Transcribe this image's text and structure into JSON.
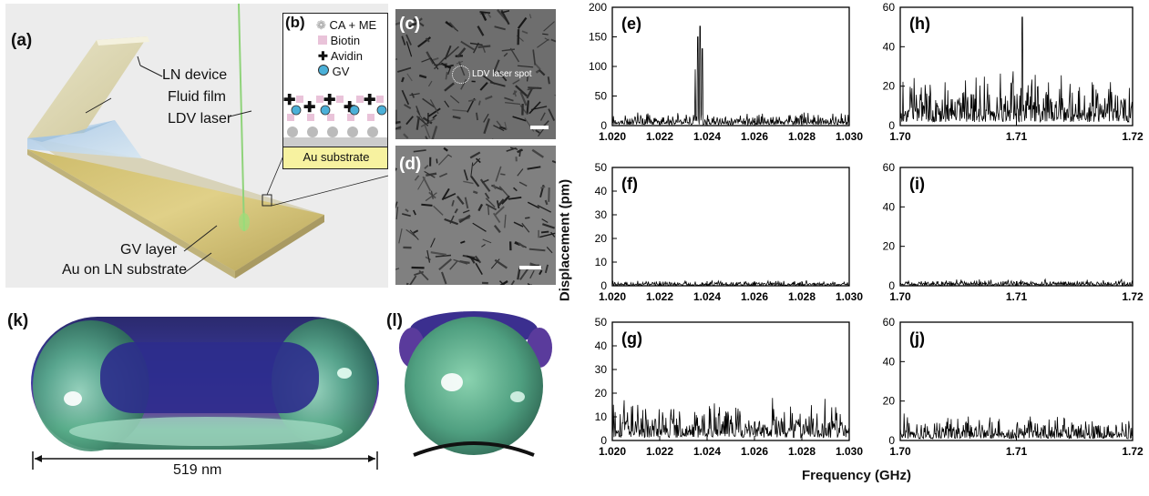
{
  "panel_a": {
    "label": "(a)",
    "callouts": [
      "LN device",
      "Fluid film",
      "LDV laser",
      "GV layer",
      "Au on LN substrate"
    ]
  },
  "panel_b": {
    "label": "(b)",
    "legend": [
      "CA + ME",
      "Biotin",
      "Avidin",
      "GV"
    ],
    "substrate": "Au substrate"
  },
  "panel_c": {
    "label": "(c)",
    "spot_label": "LDV laser spot"
  },
  "panel_d": {
    "label": "(d)"
  },
  "panel_k": {
    "label": "(k)",
    "dimension": "519 nm"
  },
  "panel_l": {
    "label": "(l)"
  },
  "shared_axes": {
    "ylabel": "Displacement (pm)",
    "xlabel": "Frequency (GHz)"
  },
  "colors": {
    "trace": "#000000",
    "gv_blue": "#4bb0d8",
    "biotin": "#e9c3d9",
    "substrate": "#f7f2a0",
    "spheroid_green": "#55a885",
    "spheroid_purple": "#3a2f8c"
  },
  "chart_data": [
    {
      "id": "e",
      "label": "(e)",
      "type": "line",
      "xlim": [
        1.02,
        1.03
      ],
      "ylim": [
        0,
        200
      ],
      "xticks": [
        "1.020",
        "1.022",
        "1.024",
        "1.026",
        "1.028",
        "1.030"
      ],
      "yticks": [
        "0",
        "50",
        "100",
        "150",
        "200"
      ],
      "noise_level": 10,
      "peaks": [
        {
          "x": 1.0237,
          "y": 168
        },
        {
          "x": 1.0236,
          "y": 150
        },
        {
          "x": 1.0238,
          "y": 130
        },
        {
          "x": 1.0235,
          "y": 95
        }
      ]
    },
    {
      "id": "h",
      "label": "(h)",
      "type": "line",
      "xlim": [
        1.7,
        1.72
      ],
      "ylim": [
        0,
        60
      ],
      "xticks": [
        "1.70",
        "1.71",
        "1.72"
      ],
      "yticks": [
        "0",
        "20",
        "40",
        "60"
      ],
      "noise_level": 12,
      "peaks": [
        {
          "x": 1.7105,
          "y": 55
        }
      ]
    },
    {
      "id": "f",
      "label": "(f)",
      "type": "line",
      "xlim": [
        1.02,
        1.03
      ],
      "ylim": [
        0,
        50
      ],
      "xticks": [
        "1.020",
        "1.022",
        "1.024",
        "1.026",
        "1.028",
        "1.030"
      ],
      "yticks": [
        "0",
        "10",
        "20",
        "30",
        "40",
        "50"
      ],
      "noise_level": 1,
      "peaks": []
    },
    {
      "id": "i",
      "label": "(i)",
      "type": "line",
      "xlim": [
        1.7,
        1.72
      ],
      "ylim": [
        0,
        60
      ],
      "xticks": [
        "1.70",
        "1.71",
        "1.72"
      ],
      "yticks": [
        "0",
        "20",
        "40",
        "60"
      ],
      "noise_level": 1.5,
      "peaks": []
    },
    {
      "id": "g",
      "label": "(g)",
      "type": "line",
      "xlim": [
        1.02,
        1.03
      ],
      "ylim": [
        0,
        50
      ],
      "xticks": [
        "1.020",
        "1.022",
        "1.024",
        "1.026",
        "1.028",
        "1.030"
      ],
      "yticks": [
        "0",
        "10",
        "20",
        "30",
        "40",
        "50"
      ],
      "noise_level": 8,
      "peaks": []
    },
    {
      "id": "j",
      "label": "(j)",
      "type": "line",
      "xlim": [
        1.7,
        1.72
      ],
      "ylim": [
        0,
        60
      ],
      "xticks": [
        "1.70",
        "1.71",
        "1.72"
      ],
      "yticks": [
        "0",
        "20",
        "40",
        "60"
      ],
      "noise_level": 6,
      "peaks": []
    }
  ]
}
